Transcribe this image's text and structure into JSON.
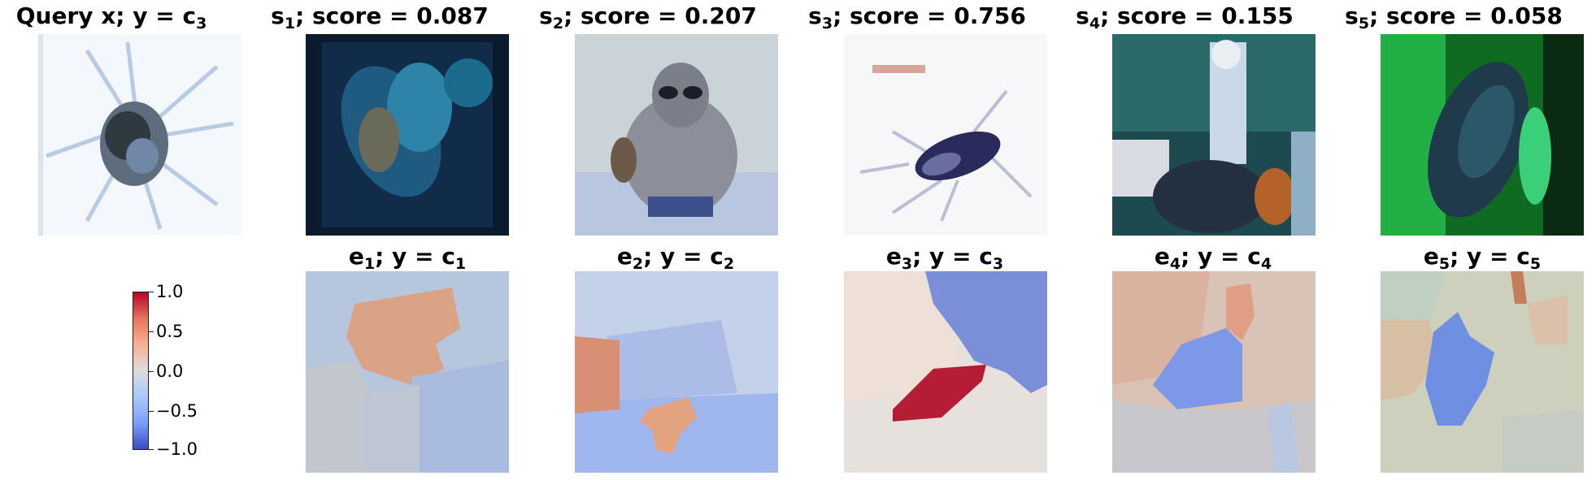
{
  "query": {
    "title_main": "Query x; y = c",
    "title_sub": "3",
    "image": "blurry bug on white"
  },
  "retrieved": [
    {
      "title_main": "s",
      "title_sub": "1",
      "title_rest": "; score = 0.087",
      "image": "blue insect dark speckled"
    },
    {
      "title_main": "s",
      "title_sub": "2",
      "title_rest": "; score = 0.207",
      "image": "raccoon-like animal"
    },
    {
      "title_main": "s",
      "title_sub": "3",
      "title_rest": "; score = 0.756",
      "image": "cockroach on white"
    },
    {
      "title_main": "s",
      "title_sub": "4",
      "title_rest": "; score = 0.155",
      "image": "person outdoors"
    },
    {
      "title_main": "s",
      "title_sub": "5",
      "title_rest": "; score = 0.058",
      "image": "green leaf insect"
    }
  ],
  "explanations": [
    {
      "e_sub": "1",
      "c_sub": "1"
    },
    {
      "e_sub": "2",
      "c_sub": "2"
    },
    {
      "e_sub": "3",
      "c_sub": "3"
    },
    {
      "e_sub": "4",
      "c_sub": "4"
    },
    {
      "e_sub": "5",
      "c_sub": "5"
    }
  ],
  "explanation_title": {
    "e": "e",
    "mid": "; y = c"
  },
  "colorbar": {
    "ticks": [
      "1.0",
      "0.5",
      "0.0",
      "−0.5",
      "−1.0"
    ],
    "colormap": "coolwarm",
    "min": -1.0,
    "max": 1.0
  }
}
